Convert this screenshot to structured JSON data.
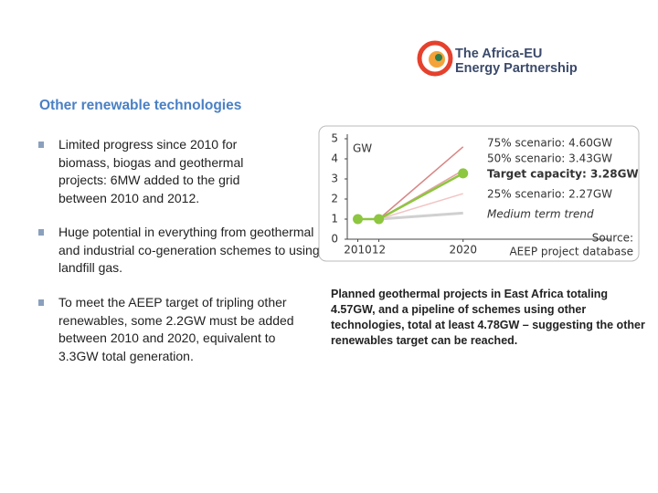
{
  "header": {
    "logo_line1": "The Africa-EU",
    "logo_line2": "Energy Partnership"
  },
  "section_title": "Other renewable technologies",
  "bullets": [
    "Limited progress since 2010 for biomass, biogas and geothermal projects: 6MW added to the grid between 2010 and 2012.",
    "Huge potential in everything from geothermal and industrial co-generation schemes to using landfill gas.",
    "To meet the AEEP target of tripling other renewables, some 2.2GW must be added between 2010 and 2020, equivalent to 3.3GW total generation."
  ],
  "chart": {
    "type": "line",
    "y_label": "GW",
    "x": [
      2010,
      2012,
      2020
    ],
    "xlim": [
      2009,
      2034
    ],
    "xticks": [
      2010,
      {
        "value": 2012,
        "label": "12"
      },
      2020
    ],
    "ylim": [
      0,
      5
    ],
    "yticks": [
      0,
      1,
      2,
      3,
      4,
      5
    ],
    "series": [
      {
        "name": "Medium term trend",
        "color": "#d0d0d0",
        "values": [
          null,
          1,
          1.3
        ]
      },
      {
        "name": "25% scenario: 2.27GW",
        "color": "#f2c4c4",
        "values": [
          null,
          1,
          2.27
        ]
      },
      {
        "name": "50% scenario: 3.43GW",
        "color": "#e3a0a0",
        "values": [
          null,
          1,
          3.43
        ]
      },
      {
        "name": "75% scenario: 4.60GW",
        "color": "#d98585",
        "values": [
          null,
          1,
          4.6
        ]
      },
      {
        "name": "Target capacity: 3.28GW",
        "color": "#8dc63f",
        "values": [
          1,
          1,
          3.28
        ]
      }
    ],
    "source_line1": "Source:",
    "source_line2": "AEEP project database"
  },
  "caption": "Planned geothermal projects in East Africa totaling 4.57GW, and a pipeline of schemes using other technologies, total at least 4.78GW – suggesting the other renewables target can be reached."
}
